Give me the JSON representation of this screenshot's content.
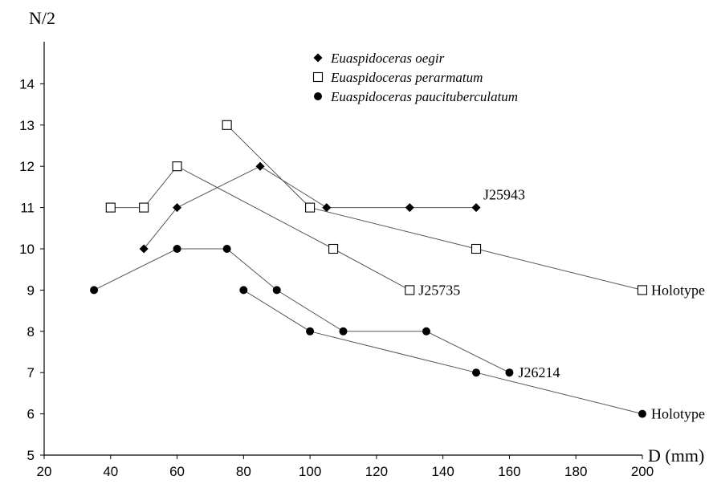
{
  "chart_data": {
    "type": "scatter",
    "ylabel": "N/2",
    "xlabel": "D (mm)",
    "xlim": [
      20,
      200
    ],
    "ylim": [
      5,
      15
    ],
    "xticks": [
      "20",
      "40",
      "60",
      "80",
      "100",
      "120",
      "140",
      "160",
      "180",
      "200"
    ],
    "yticks": [
      "5",
      "6",
      "7",
      "8",
      "9",
      "10",
      "11",
      "12",
      "13",
      "14"
    ],
    "legend": {
      "placement": "top-center",
      "entries": [
        {
          "name": "Euaspidoceras oegir",
          "marker": "diamond-filled"
        },
        {
          "name": "Euaspidoceras perarmatum",
          "marker": "square-open"
        },
        {
          "name": "Euaspidoceras paucituberculatum",
          "marker": "circle-filled"
        }
      ]
    },
    "series": [
      {
        "species": "Euaspidoceras oegir",
        "marker": "diamond-filled",
        "label": "J25943",
        "points": [
          [
            50,
            10
          ],
          [
            60,
            11
          ],
          [
            85,
            12
          ],
          [
            105,
            11
          ],
          [
            130,
            11
          ],
          [
            150,
            11
          ]
        ]
      },
      {
        "species": "Euaspidoceras perarmatum",
        "marker": "square-open",
        "label": "J25735",
        "points": [
          [
            40,
            11
          ],
          [
            50,
            11
          ],
          [
            60,
            12
          ],
          [
            107,
            10
          ],
          [
            130,
            9
          ]
        ]
      },
      {
        "species": "Euaspidoceras perarmatum",
        "marker": "square-open",
        "label": "Holotype",
        "points": [
          [
            75,
            13
          ],
          [
            100,
            11
          ],
          [
            150,
            10
          ],
          [
            200,
            9
          ]
        ]
      },
      {
        "species": "Euaspidoceras paucituberculatum",
        "marker": "circle-filled",
        "label": "J26214",
        "points": [
          [
            35,
            9
          ],
          [
            60,
            10
          ],
          [
            75,
            10
          ],
          [
            90,
            9
          ],
          [
            110,
            8
          ],
          [
            135,
            8
          ],
          [
            160,
            7
          ]
        ]
      },
      {
        "species": "Euaspidoceras paucituberculatum",
        "marker": "circle-filled",
        "label": "Holotype",
        "points": [
          [
            80,
            9
          ],
          [
            100,
            8
          ],
          [
            150,
            7
          ],
          [
            200,
            6
          ]
        ]
      }
    ]
  }
}
